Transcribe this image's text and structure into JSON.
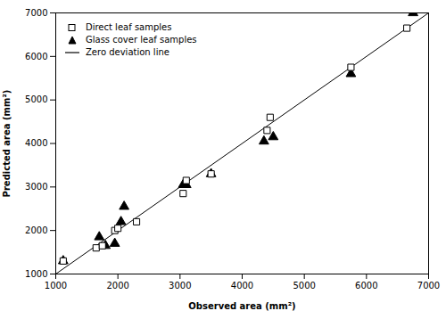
{
  "chart_data": {
    "type": "scatter",
    "xlabel": "Observed area (mm²)",
    "ylabel": "Predicted area (mm²)",
    "xlim": [
      1000,
      7000
    ],
    "ylim": [
      1000,
      7000
    ],
    "xticks": [
      1000,
      2000,
      3000,
      4000,
      5000,
      6000,
      7000
    ],
    "yticks": [
      1000,
      2000,
      3000,
      4000,
      5000,
      6000,
      7000
    ],
    "grid": false,
    "legend": "upper left",
    "series": [
      {
        "name": "Direct leaf samples",
        "type": "scatter",
        "marker": "square",
        "color": "black",
        "x": [
          1120,
          1650,
          1750,
          1950,
          2000,
          2300,
          3050,
          3100,
          3500,
          4400,
          4450,
          5750,
          6650
        ],
        "values": [
          1300,
          1600,
          1650,
          2000,
          2050,
          2200,
          2850,
          3150,
          3300,
          4300,
          4600,
          5750,
          6650
        ]
      },
      {
        "name": "Glass cover leaf samples",
        "type": "scatter",
        "marker": "triangle",
        "color": "black",
        "x": [
          1120,
          1700,
          1800,
          1950,
          2050,
          2100,
          3050,
          3100,
          3500,
          4350,
          4500,
          5750,
          6750
        ],
        "values": [
          1300,
          1850,
          1650,
          1700,
          2200,
          2550,
          3050,
          3050,
          3300,
          4050,
          4150,
          5600,
          7000
        ]
      },
      {
        "name": "Zero deviation line",
        "type": "line",
        "color": "black",
        "x": [
          1000,
          7000
        ],
        "values": [
          1000,
          7000
        ]
      }
    ]
  }
}
